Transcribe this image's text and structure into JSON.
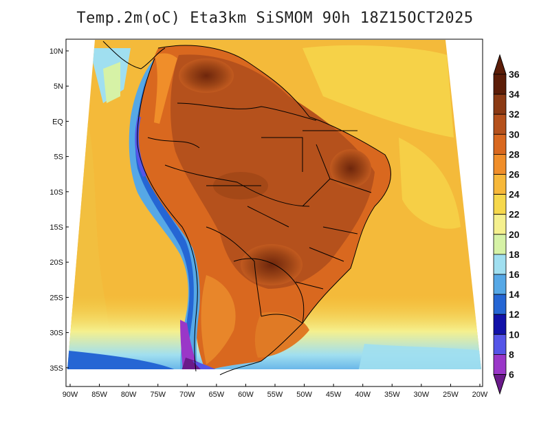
{
  "title": "Temp.2m(oC) Eta3km SiSMOM 90h 18Z15OCT2025",
  "map": {
    "lat_labels": [
      "10N",
      "5N",
      "EQ",
      "5S",
      "10S",
      "15S",
      "20S",
      "25S",
      "30S",
      "35S"
    ],
    "lon_labels": [
      "90W",
      "85W",
      "80W",
      "75W",
      "70W",
      "65W",
      "60W",
      "55W",
      "50W",
      "45W",
      "40W",
      "35W",
      "30W",
      "25W",
      "20W"
    ],
    "lat_range": [
      -38,
      12
    ],
    "lon_range": [
      -91,
      -20
    ]
  },
  "colorbar": {
    "labels": [
      "36",
      "34",
      "32",
      "30",
      "28",
      "26",
      "24",
      "22",
      "20",
      "18",
      "16",
      "14",
      "12",
      "10",
      "8",
      "6"
    ],
    "colors": [
      "#5c1d08",
      "#8b3a14",
      "#b5511c",
      "#d9681f",
      "#f08e2a",
      "#f7b83a",
      "#f6d84c",
      "#f5f08e",
      "#d6f2a6",
      "#a0dff0",
      "#56a8e6",
      "#2566d4",
      "#1111a8",
      "#5555e8",
      "#9a37c8",
      "#6a1a8a"
    ]
  }
}
